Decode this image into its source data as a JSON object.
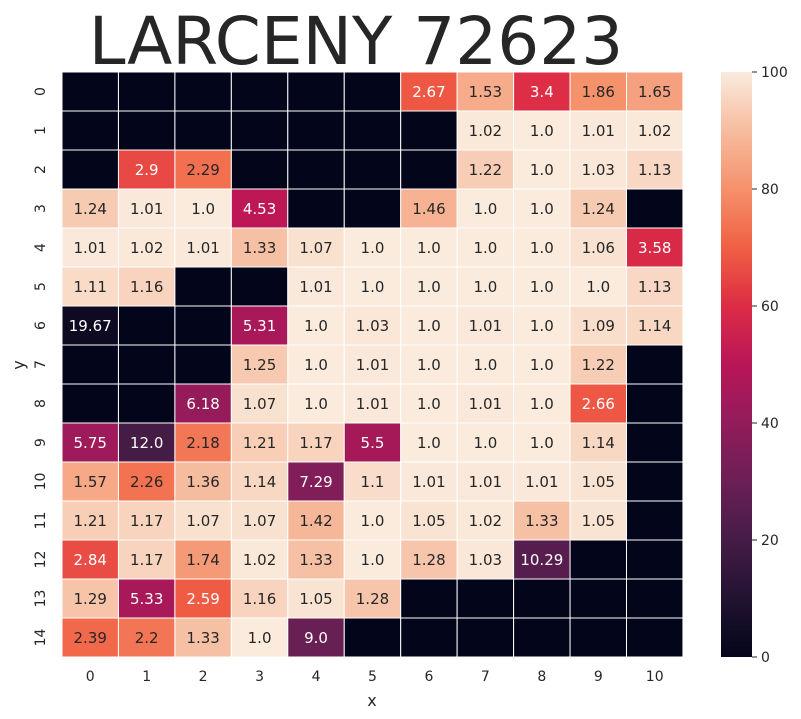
{
  "chart_data": {
    "type": "heatmap",
    "title": "LARCENY 72623",
    "xlabel": "x",
    "ylabel": "y",
    "x_categories": [
      "0",
      "1",
      "2",
      "3",
      "4",
      "5",
      "6",
      "7",
      "8",
      "9",
      "10"
    ],
    "y_categories": [
      "0",
      "1",
      "2",
      "3",
      "4",
      "5",
      "6",
      "7",
      "8",
      "9",
      "10",
      "11",
      "12",
      "13",
      "14"
    ],
    "values": [
      [
        null,
        null,
        null,
        null,
        null,
        null,
        2.67,
        1.53,
        3.4,
        1.86,
        1.65
      ],
      [
        null,
        null,
        null,
        null,
        null,
        null,
        null,
        1.02,
        1.0,
        1.01,
        1.02
      ],
      [
        null,
        2.9,
        2.29,
        null,
        null,
        null,
        null,
        1.22,
        1.0,
        1.03,
        1.13
      ],
      [
        1.24,
        1.01,
        1.0,
        4.53,
        null,
        null,
        1.46,
        1.0,
        1.0,
        1.24,
        null
      ],
      [
        1.01,
        1.02,
        1.01,
        1.33,
        1.07,
        1.0,
        1.0,
        1.0,
        1.0,
        1.06,
        3.58
      ],
      [
        1.11,
        1.16,
        null,
        null,
        1.01,
        1.0,
        1.0,
        1.0,
        1.0,
        1.0,
        1.13
      ],
      [
        19.67,
        null,
        null,
        5.31,
        1.0,
        1.03,
        1.0,
        1.01,
        1.0,
        1.09,
        1.14
      ],
      [
        null,
        null,
        null,
        1.25,
        1.0,
        1.01,
        1.0,
        1.0,
        1.0,
        1.22,
        null
      ],
      [
        null,
        null,
        6.18,
        1.07,
        1.0,
        1.01,
        1.0,
        1.01,
        1.0,
        2.66,
        null
      ],
      [
        5.75,
        12.0,
        2.18,
        1.21,
        1.17,
        5.5,
        1.0,
        1.0,
        1.0,
        1.14,
        null
      ],
      [
        1.57,
        2.26,
        1.36,
        1.14,
        7.29,
        1.1,
        1.01,
        1.01,
        1.01,
        1.05,
        null
      ],
      [
        1.21,
        1.17,
        1.07,
        1.07,
        1.42,
        1.0,
        1.05,
        1.02,
        1.33,
        1.05,
        null
      ],
      [
        2.84,
        1.17,
        1.74,
        1.02,
        1.33,
        1.0,
        1.28,
        1.03,
        10.29,
        null,
        null
      ],
      [
        1.29,
        5.33,
        2.59,
        1.16,
        1.05,
        1.28,
        null,
        null,
        null,
        null,
        null
      ],
      [
        2.39,
        2.2,
        1.33,
        1.0,
        9.0,
        null,
        null,
        null,
        null,
        null,
        null
      ]
    ],
    "display_labels": [
      [
        "",
        "",
        "",
        "",
        "",
        "",
        "2.67",
        "1.53",
        "3.4",
        "1.86",
        "1.65"
      ],
      [
        "",
        "",
        "",
        "",
        "",
        "",
        "",
        "1.02",
        "1.0",
        "1.01",
        "1.02"
      ],
      [
        "",
        "2.9",
        "2.29",
        "",
        "",
        "",
        "",
        "1.22",
        "1.0",
        "1.03",
        "1.13"
      ],
      [
        "1.24",
        "1.01",
        "1.0",
        "4.53",
        "",
        "",
        "1.46",
        "1.0",
        "1.0",
        "1.24",
        ""
      ],
      [
        "1.01",
        "1.02",
        "1.01",
        "1.33",
        "1.07",
        "1.0",
        "1.0",
        "1.0",
        "1.0",
        "1.06",
        "3.58"
      ],
      [
        "1.11",
        "1.16",
        "",
        "",
        "1.01",
        "1.0",
        "1.0",
        "1.0",
        "1.0",
        "1.0",
        "1.13"
      ],
      [
        "19.67",
        "",
        "",
        "5.31",
        "1.0",
        "1.03",
        "1.0",
        "1.01",
        "1.0",
        "1.09",
        "1.14"
      ],
      [
        "",
        "",
        "",
        "1.25",
        "1.0",
        "1.01",
        "1.0",
        "1.0",
        "1.0",
        "1.22",
        ""
      ],
      [
        "",
        "",
        "6.18",
        "1.07",
        "1.0",
        "1.01",
        "1.0",
        "1.01",
        "1.0",
        "2.66",
        ""
      ],
      [
        "5.75",
        "12.0",
        "2.18",
        "1.21",
        "1.17",
        "5.5",
        "1.0",
        "1.0",
        "1.0",
        "1.14",
        ""
      ],
      [
        "1.57",
        "2.26",
        "1.36",
        "1.14",
        "7.29",
        "1.1",
        "1.01",
        "1.01",
        "1.01",
        "1.05",
        ""
      ],
      [
        "1.21",
        "1.17",
        "1.07",
        "1.07",
        "1.42",
        "1.0",
        "1.05",
        "1.02",
        "1.33",
        "1.05",
        ""
      ],
      [
        "2.84",
        "1.17",
        "1.74",
        "1.02",
        "1.33",
        "1.0",
        "1.28",
        "1.03",
        "10.29",
        "",
        ""
      ],
      [
        "1.29",
        "5.33",
        "2.59",
        "1.16",
        "1.05",
        "1.28",
        "",
        "",
        "",
        "",
        ""
      ],
      [
        "2.39",
        "2.2",
        "1.33",
        "1.0",
        "9.0",
        "",
        "",
        "",
        "",
        "",
        ""
      ]
    ],
    "vmin": 0,
    "vmax": 100,
    "colorbar_ticks": [
      0,
      20,
      40,
      60,
      80,
      100
    ],
    "colormap": "rocket",
    "missing_color": "#03051a",
    "gridline_color": "#ffffff",
    "grid": false,
    "legend": "colorbar-right"
  }
}
